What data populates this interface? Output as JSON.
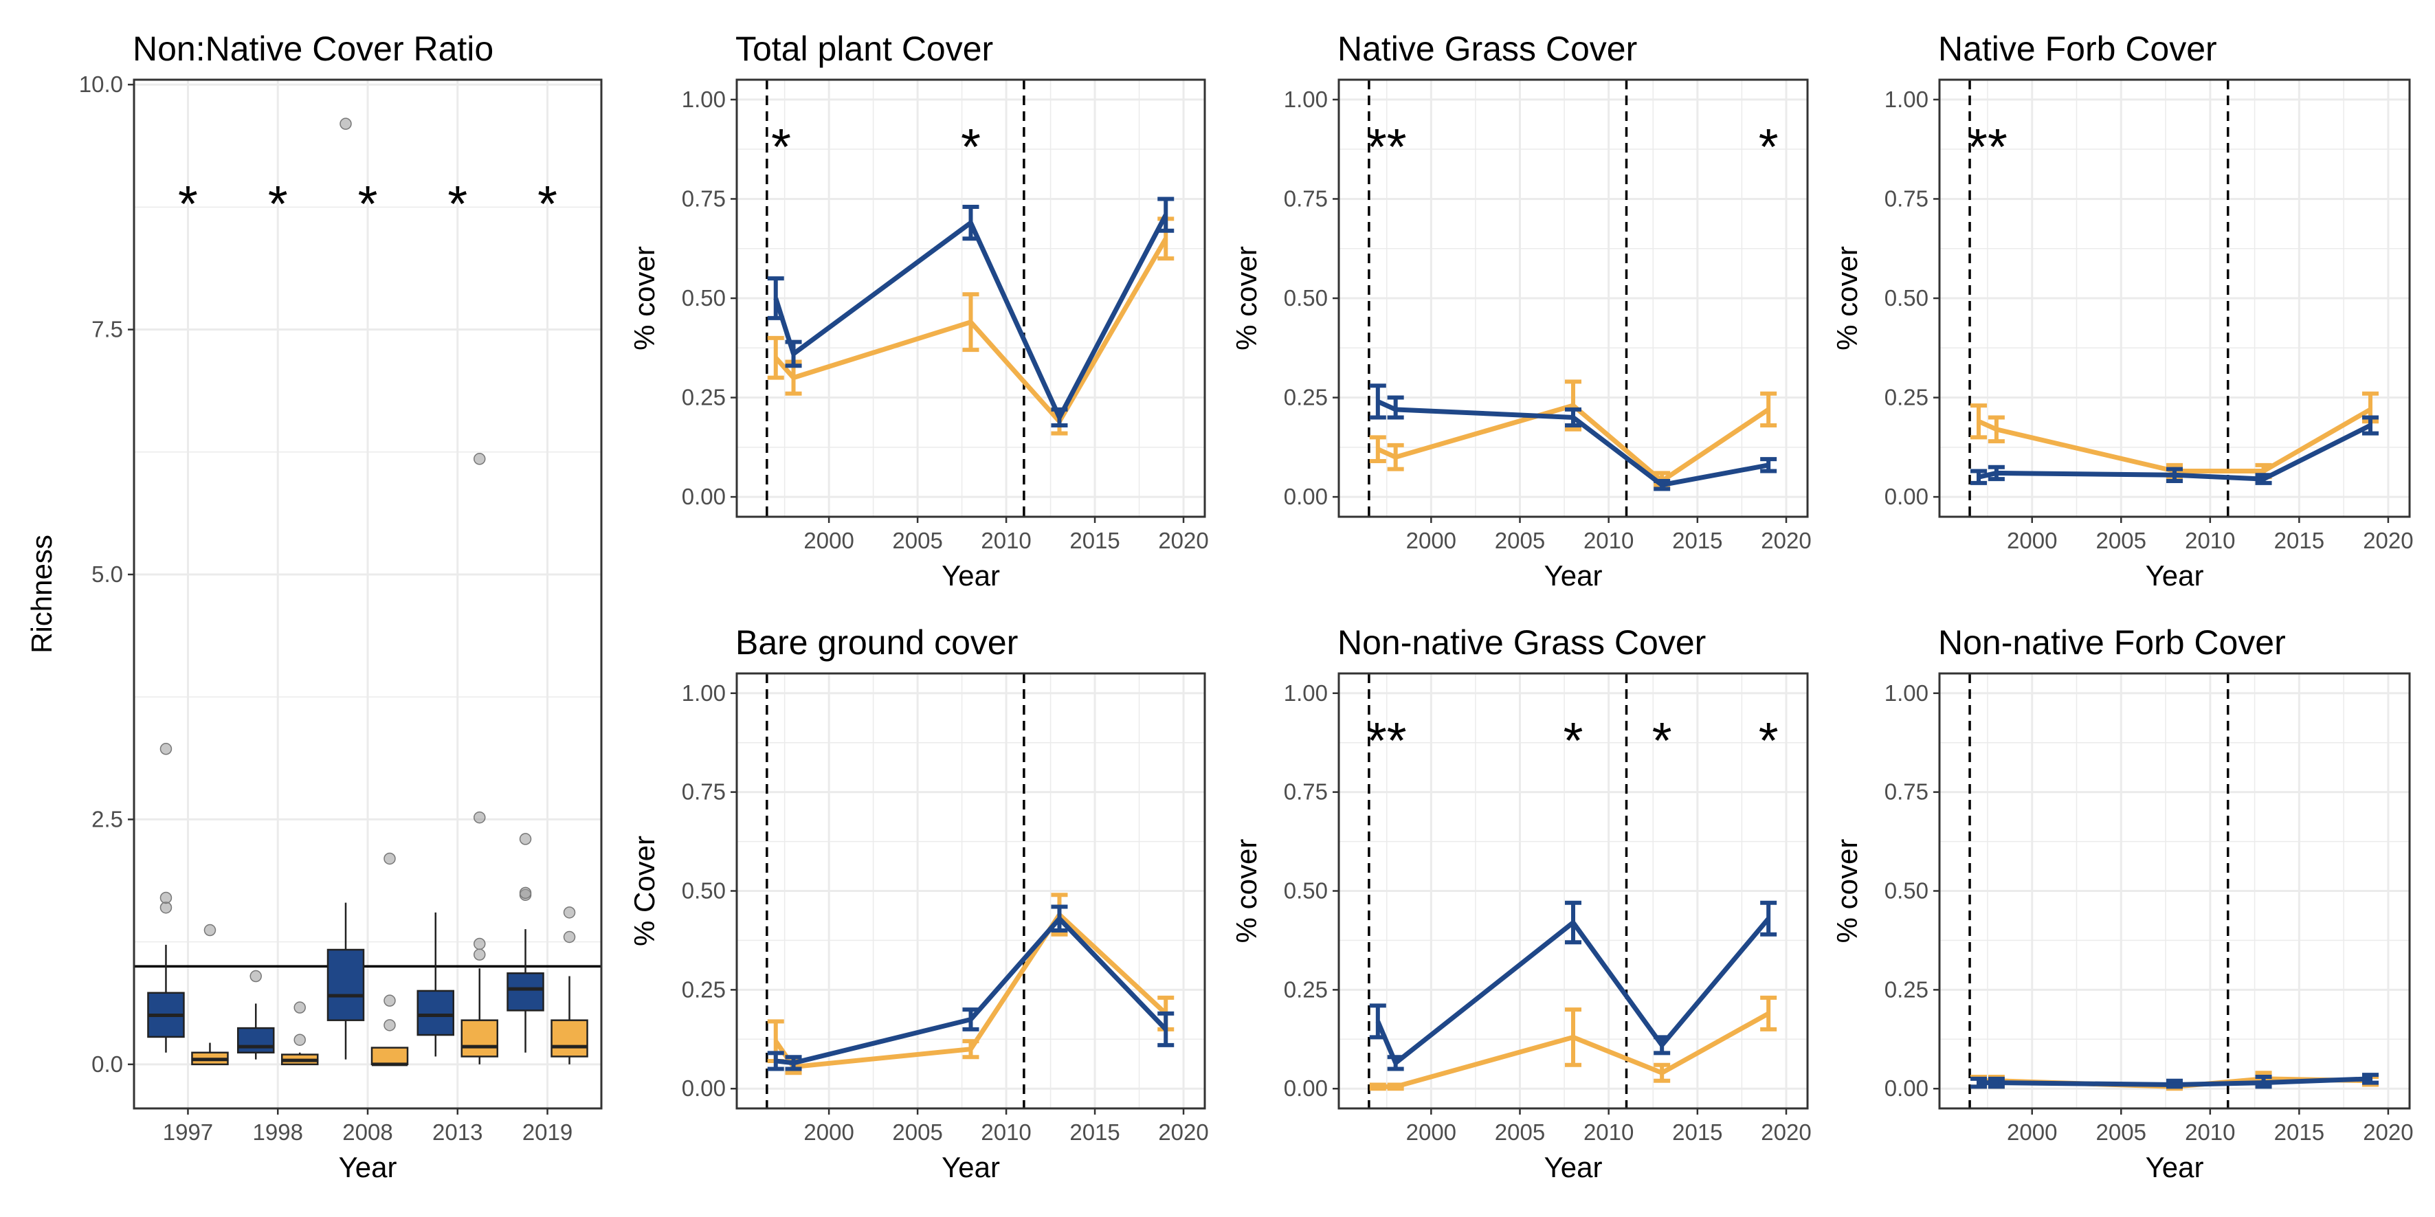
{
  "colors": {
    "native": "#1F4788",
    "nonnative": "#F2B04A",
    "grid": "#EBEBEB",
    "frame": "#333333"
  },
  "chart_data": [
    {
      "id": "ratio",
      "type": "box",
      "title": "Non:Native Cover Ratio",
      "xlabel": "Year",
      "ylabel": "Richness",
      "categories": [
        "1997",
        "1998",
        "2008",
        "2013",
        "2019"
      ],
      "ylim": [
        -0.45,
        10.05
      ],
      "yticks": [
        0,
        2.5,
        5,
        7.5,
        10
      ],
      "ytick_labels": [
        "0.0",
        "2.5",
        "5.0",
        "7.5",
        "10.0"
      ],
      "reference_line": 1.0,
      "stars": [
        {
          "category": "1997",
          "y": 8.9,
          "text": "*"
        },
        {
          "category": "1998",
          "y": 8.9,
          "text": "*"
        },
        {
          "category": "2008",
          "y": 8.9,
          "text": "*"
        },
        {
          "category": "2013",
          "y": 8.9,
          "text": "*"
        },
        {
          "category": "2019",
          "y": 8.9,
          "text": "*"
        }
      ],
      "boxes": [
        {
          "category": "1997",
          "group": "native",
          "min": 0.12,
          "q1": 0.28,
          "median": 0.5,
          "q3": 0.73,
          "max": 1.22,
          "outliers": [
            1.6,
            1.7,
            3.22
          ]
        },
        {
          "category": "1997",
          "group": "nonnative",
          "min": 0.0,
          "q1": 0.0,
          "median": 0.05,
          "q3": 0.12,
          "max": 0.22,
          "outliers": [
            1.37
          ]
        },
        {
          "category": "1998",
          "group": "native",
          "min": 0.05,
          "q1": 0.12,
          "median": 0.18,
          "q3": 0.37,
          "max": 0.62,
          "outliers": [
            0.9
          ]
        },
        {
          "category": "1998",
          "group": "nonnative",
          "min": 0.0,
          "q1": 0.0,
          "median": 0.04,
          "q3": 0.1,
          "max": 0.12,
          "outliers": [
            0.25,
            0.58
          ]
        },
        {
          "category": "2008",
          "group": "native",
          "min": 0.05,
          "q1": 0.45,
          "median": 0.7,
          "q3": 1.17,
          "max": 1.65,
          "outliers": [
            9.6
          ]
        },
        {
          "category": "2008",
          "group": "nonnative",
          "min": 0.0,
          "q1": 0.0,
          "median": 0.0,
          "q3": 0.17,
          "max": 0.17,
          "outliers": [
            0.4,
            0.65,
            2.1
          ]
        },
        {
          "category": "2013",
          "group": "native",
          "min": 0.08,
          "q1": 0.3,
          "median": 0.5,
          "q3": 0.75,
          "max": 1.55,
          "outliers": []
        },
        {
          "category": "2013",
          "group": "nonnative",
          "min": 0.0,
          "q1": 0.08,
          "median": 0.18,
          "q3": 0.45,
          "max": 0.98,
          "outliers": [
            1.12,
            1.23,
            2.52,
            6.18
          ]
        },
        {
          "category": "2019",
          "group": "native",
          "min": 0.12,
          "q1": 0.55,
          "median": 0.77,
          "q3": 0.93,
          "max": 1.38,
          "outliers": [
            1.73,
            1.75,
            2.3
          ]
        },
        {
          "category": "2019",
          "group": "nonnative",
          "min": 0.0,
          "q1": 0.08,
          "median": 0.18,
          "q3": 0.45,
          "max": 0.9,
          "outliers": [
            1.3,
            1.55
          ]
        }
      ]
    },
    {
      "id": "total",
      "type": "line",
      "title": "Total plant Cover",
      "xlabel": "Year",
      "ylabel": "% cover",
      "xlim": [
        1994.8,
        2021.2
      ],
      "ylim": [
        -0.05,
        1.05
      ],
      "xticks": [
        2000,
        2005,
        2010,
        2015,
        2020
      ],
      "yticks": [
        0,
        0.25,
        0.5,
        0.75,
        1.0
      ],
      "ytick_labels": [
        "0.00",
        "0.25",
        "0.50",
        "0.75",
        "1.00"
      ],
      "vlines": [
        1996.5,
        2011
      ],
      "stars": [
        {
          "x": 1997.3,
          "y": 0.92,
          "text": "*"
        },
        {
          "x": 2008,
          "y": 0.92,
          "text": "*"
        }
      ],
      "series": [
        {
          "group": "native",
          "points": [
            {
              "x": 1997,
              "y": 0.5,
              "lo": 0.45,
              "hi": 0.55
            },
            {
              "x": 1998,
              "y": 0.36,
              "lo": 0.33,
              "hi": 0.39
            },
            {
              "x": 2008,
              "y": 0.69,
              "lo": 0.65,
              "hi": 0.73
            },
            {
              "x": 2013,
              "y": 0.2,
              "lo": 0.18,
              "hi": 0.22
            },
            {
              "x": 2019,
              "y": 0.71,
              "lo": 0.67,
              "hi": 0.75
            }
          ]
        },
        {
          "group": "nonnative",
          "points": [
            {
              "x": 1997,
              "y": 0.35,
              "lo": 0.3,
              "hi": 0.4
            },
            {
              "x": 1998,
              "y": 0.3,
              "lo": 0.26,
              "hi": 0.34
            },
            {
              "x": 2008,
              "y": 0.44,
              "lo": 0.37,
              "hi": 0.51
            },
            {
              "x": 2013,
              "y": 0.19,
              "lo": 0.16,
              "hi": 0.22
            },
            {
              "x": 2019,
              "y": 0.65,
              "lo": 0.6,
              "hi": 0.7
            }
          ]
        }
      ]
    },
    {
      "id": "ngrass",
      "type": "line",
      "title": "Native Grass Cover",
      "xlabel": "Year",
      "ylabel": "% cover",
      "xlim": [
        1994.8,
        2021.2
      ],
      "ylim": [
        -0.05,
        1.05
      ],
      "xticks": [
        2000,
        2005,
        2010,
        2015,
        2020
      ],
      "yticks": [
        0,
        0.25,
        0.5,
        0.75,
        1.0
      ],
      "ytick_labels": [
        "0.00",
        "0.25",
        "0.50",
        "0.75",
        "1.00"
      ],
      "vlines": [
        1996.5,
        2011
      ],
      "stars": [
        {
          "x": 1997.5,
          "y": 0.92,
          "text": "**"
        },
        {
          "x": 2019,
          "y": 0.92,
          "text": "*"
        }
      ],
      "series": [
        {
          "group": "native",
          "points": [
            {
              "x": 1997,
              "y": 0.24,
              "lo": 0.2,
              "hi": 0.28
            },
            {
              "x": 1998,
              "y": 0.22,
              "lo": 0.2,
              "hi": 0.25
            },
            {
              "x": 2008,
              "y": 0.2,
              "lo": 0.18,
              "hi": 0.22
            },
            {
              "x": 2013,
              "y": 0.03,
              "lo": 0.02,
              "hi": 0.04
            },
            {
              "x": 2019,
              "y": 0.08,
              "lo": 0.065,
              "hi": 0.095
            }
          ]
        },
        {
          "group": "nonnative",
          "points": [
            {
              "x": 1997,
              "y": 0.12,
              "lo": 0.09,
              "hi": 0.15
            },
            {
              "x": 1998,
              "y": 0.1,
              "lo": 0.07,
              "hi": 0.13
            },
            {
              "x": 2008,
              "y": 0.23,
              "lo": 0.17,
              "hi": 0.29
            },
            {
              "x": 2013,
              "y": 0.04,
              "lo": 0.03,
              "hi": 0.06
            },
            {
              "x": 2019,
              "y": 0.22,
              "lo": 0.18,
              "hi": 0.26
            }
          ]
        }
      ]
    },
    {
      "id": "nforb",
      "type": "line",
      "title": "Native Forb Cover",
      "xlabel": "Year",
      "ylabel": "% cover",
      "xlim": [
        1994.8,
        2021.2
      ],
      "ylim": [
        -0.05,
        1.05
      ],
      "xticks": [
        2000,
        2005,
        2010,
        2015,
        2020
      ],
      "yticks": [
        0,
        0.25,
        0.5,
        0.75,
        1.0
      ],
      "ytick_labels": [
        "0.00",
        "0.25",
        "0.50",
        "0.75",
        "1.00"
      ],
      "vlines": [
        1996.5,
        2011
      ],
      "stars": [
        {
          "x": 1997.5,
          "y": 0.92,
          "text": "**"
        }
      ],
      "series": [
        {
          "group": "native",
          "points": [
            {
              "x": 1997,
              "y": 0.05,
              "lo": 0.035,
              "hi": 0.065
            },
            {
              "x": 1998,
              "y": 0.06,
              "lo": 0.045,
              "hi": 0.075
            },
            {
              "x": 2008,
              "y": 0.055,
              "lo": 0.04,
              "hi": 0.07
            },
            {
              "x": 2013,
              "y": 0.045,
              "lo": 0.035,
              "hi": 0.055
            },
            {
              "x": 2019,
              "y": 0.18,
              "lo": 0.16,
              "hi": 0.2
            }
          ]
        },
        {
          "group": "nonnative",
          "points": [
            {
              "x": 1997,
              "y": 0.19,
              "lo": 0.15,
              "hi": 0.23
            },
            {
              "x": 1998,
              "y": 0.17,
              "lo": 0.14,
              "hi": 0.2
            },
            {
              "x": 2008,
              "y": 0.065,
              "lo": 0.05,
              "hi": 0.08
            },
            {
              "x": 2013,
              "y": 0.065,
              "lo": 0.05,
              "hi": 0.08
            },
            {
              "x": 2019,
              "y": 0.22,
              "lo": 0.19,
              "hi": 0.26
            }
          ]
        }
      ]
    },
    {
      "id": "bare",
      "type": "line",
      "title": "Bare ground cover",
      "xlabel": "Year",
      "ylabel": "% Cover",
      "xlim": [
        1994.8,
        2021.2
      ],
      "ylim": [
        -0.05,
        1.05
      ],
      "xticks": [
        2000,
        2005,
        2010,
        2015,
        2020
      ],
      "yticks": [
        0,
        0.25,
        0.5,
        0.75,
        1.0
      ],
      "ytick_labels": [
        "0.00",
        "0.25",
        "0.50",
        "0.75",
        "1.00"
      ],
      "vlines": [
        1996.5,
        2011
      ],
      "stars": [],
      "series": [
        {
          "group": "native",
          "points": [
            {
              "x": 1997,
              "y": 0.07,
              "lo": 0.05,
              "hi": 0.09
            },
            {
              "x": 1998,
              "y": 0.065,
              "lo": 0.05,
              "hi": 0.08
            },
            {
              "x": 2008,
              "y": 0.175,
              "lo": 0.15,
              "hi": 0.2
            },
            {
              "x": 2013,
              "y": 0.43,
              "lo": 0.4,
              "hi": 0.46
            },
            {
              "x": 2019,
              "y": 0.15,
              "lo": 0.11,
              "hi": 0.19
            }
          ]
        },
        {
          "group": "nonnative",
          "points": [
            {
              "x": 1997,
              "y": 0.12,
              "lo": 0.07,
              "hi": 0.17
            },
            {
              "x": 1998,
              "y": 0.055,
              "lo": 0.04,
              "hi": 0.07
            },
            {
              "x": 2008,
              "y": 0.1,
              "lo": 0.08,
              "hi": 0.12
            },
            {
              "x": 2013,
              "y": 0.44,
              "lo": 0.39,
              "hi": 0.49
            },
            {
              "x": 2019,
              "y": 0.19,
              "lo": 0.15,
              "hi": 0.23
            }
          ]
        }
      ]
    },
    {
      "id": "nngrass",
      "type": "line",
      "title": "Non-native Grass Cover",
      "xlabel": "Year",
      "ylabel": "% cover",
      "xlim": [
        1994.8,
        2021.2
      ],
      "ylim": [
        -0.05,
        1.05
      ],
      "xticks": [
        2000,
        2005,
        2010,
        2015,
        2020
      ],
      "yticks": [
        0,
        0.25,
        0.5,
        0.75,
        1.0
      ],
      "ytick_labels": [
        "0.00",
        "0.25",
        "0.50",
        "0.75",
        "1.00"
      ],
      "vlines": [
        1996.5,
        2011
      ],
      "stars": [
        {
          "x": 1997.5,
          "y": 0.92,
          "text": "**"
        },
        {
          "x": 2008,
          "y": 0.92,
          "text": "*"
        },
        {
          "x": 2013,
          "y": 0.92,
          "text": "*"
        },
        {
          "x": 2019,
          "y": 0.92,
          "text": "*"
        }
      ],
      "series": [
        {
          "group": "native",
          "points": [
            {
              "x": 1997,
              "y": 0.17,
              "lo": 0.13,
              "hi": 0.21
            },
            {
              "x": 1998,
              "y": 0.065,
              "lo": 0.05,
              "hi": 0.08
            },
            {
              "x": 2008,
              "y": 0.42,
              "lo": 0.37,
              "hi": 0.47
            },
            {
              "x": 2013,
              "y": 0.11,
              "lo": 0.09,
              "hi": 0.13
            },
            {
              "x": 2019,
              "y": 0.43,
              "lo": 0.39,
              "hi": 0.47
            }
          ]
        },
        {
          "group": "nonnative",
          "points": [
            {
              "x": 1997,
              "y": 0.005,
              "lo": 0.0,
              "hi": 0.01
            },
            {
              "x": 1998,
              "y": 0.005,
              "lo": 0.0,
              "hi": 0.01
            },
            {
              "x": 2008,
              "y": 0.13,
              "lo": 0.06,
              "hi": 0.2
            },
            {
              "x": 2013,
              "y": 0.04,
              "lo": 0.02,
              "hi": 0.06
            },
            {
              "x": 2019,
              "y": 0.19,
              "lo": 0.15,
              "hi": 0.23
            }
          ]
        }
      ]
    },
    {
      "id": "nnforb",
      "type": "line",
      "title": "Non-native Forb Cover",
      "xlabel": "Year",
      "ylabel": "% cover",
      "xlim": [
        1994.8,
        2021.2
      ],
      "ylim": [
        -0.05,
        1.05
      ],
      "xticks": [
        2000,
        2005,
        2010,
        2015,
        2020
      ],
      "yticks": [
        0,
        0.25,
        0.5,
        0.75,
        1.0
      ],
      "ytick_labels": [
        "0.00",
        "0.25",
        "0.50",
        "0.75",
        "1.00"
      ],
      "vlines": [
        1996.5,
        2011
      ],
      "stars": [],
      "series": [
        {
          "group": "native",
          "points": [
            {
              "x": 1997,
              "y": 0.015,
              "lo": 0.005,
              "hi": 0.025
            },
            {
              "x": 1998,
              "y": 0.015,
              "lo": 0.005,
              "hi": 0.025
            },
            {
              "x": 2008,
              "y": 0.01,
              "lo": 0.005,
              "hi": 0.02
            },
            {
              "x": 2013,
              "y": 0.015,
              "lo": 0.005,
              "hi": 0.03
            },
            {
              "x": 2019,
              "y": 0.025,
              "lo": 0.015,
              "hi": 0.035
            }
          ]
        },
        {
          "group": "nonnative",
          "points": [
            {
              "x": 1997,
              "y": 0.02,
              "lo": 0.005,
              "hi": 0.03
            },
            {
              "x": 1998,
              "y": 0.02,
              "lo": 0.005,
              "hi": 0.03
            },
            {
              "x": 2008,
              "y": 0.005,
              "lo": 0.0,
              "hi": 0.015
            },
            {
              "x": 2013,
              "y": 0.025,
              "lo": 0.01,
              "hi": 0.04
            },
            {
              "x": 2019,
              "y": 0.02,
              "lo": 0.01,
              "hi": 0.03
            }
          ]
        }
      ]
    }
  ]
}
